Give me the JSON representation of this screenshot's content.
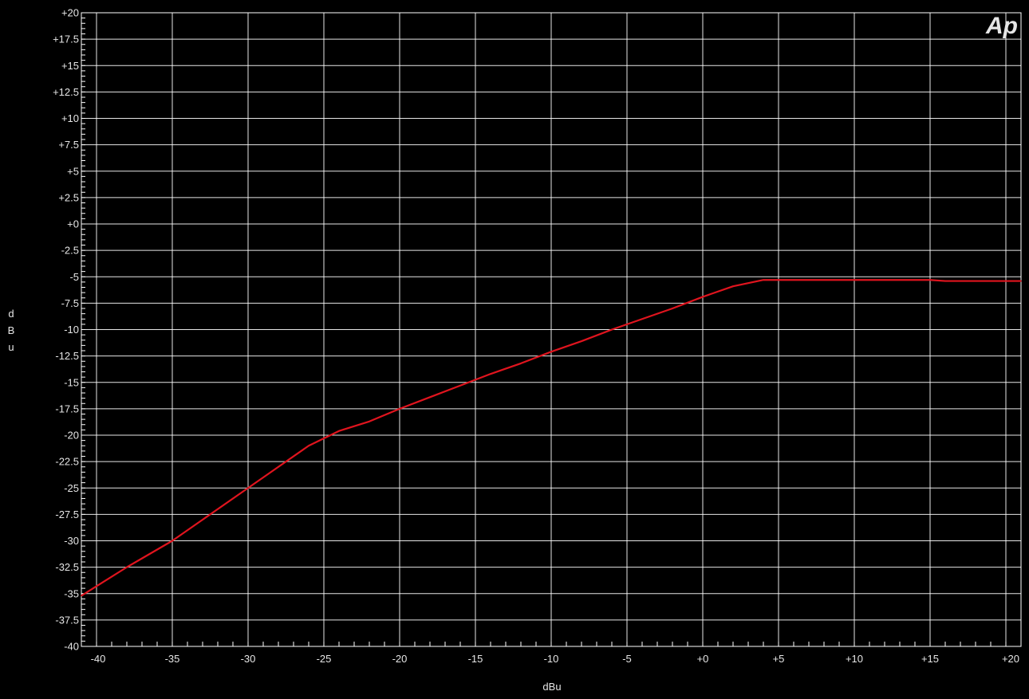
{
  "chart_data": {
    "type": "line",
    "title": "",
    "xlabel": "dBu",
    "ylabel": "dBu",
    "ylabel_chars": [
      "d",
      "B",
      "u"
    ],
    "xlim": [
      -41,
      21
    ],
    "ylim": [
      -40,
      20
    ],
    "grid": true,
    "x_ticks": [
      -40,
      -35,
      -30,
      -25,
      -20,
      -15,
      -10,
      -5,
      0,
      5,
      10,
      15,
      20
    ],
    "x_tick_labels": [
      "-40",
      "-35",
      "-30",
      "-25",
      "-20",
      "-15",
      "-10",
      "-5",
      "+0",
      "+5",
      "+10",
      "+15",
      "+20"
    ],
    "y_ticks": [
      20,
      17.5,
      15,
      12.5,
      10,
      7.5,
      5,
      2.5,
      0,
      -2.5,
      -5,
      -7.5,
      -10,
      -12.5,
      -15,
      -17.5,
      -20,
      -22.5,
      -25,
      -27.5,
      -30,
      -32.5,
      -35,
      -37.5,
      -40
    ],
    "y_tick_labels": [
      "+20",
      "+17.5",
      "+15",
      "+12.5",
      "+10",
      "+7.5",
      "+5",
      "+2.5",
      "+0",
      "-2.5",
      "-5",
      "-7.5",
      "-10",
      "-12.5",
      "-15",
      "-17.5",
      "-20",
      "-22.5",
      "-25",
      "-27.5",
      "-30",
      "-32.5",
      "-35",
      "-37.5",
      "-40"
    ],
    "series": [
      {
        "color": "#e0141e",
        "x": [
          -41,
          -38,
          -35,
          -32,
          -30,
          -28,
          -26,
          -24,
          -22,
          -20,
          -18,
          -16,
          -14,
          -12,
          -10,
          -8,
          -6,
          -4,
          -2,
          0,
          2,
          4,
          5,
          10,
          15,
          16,
          21
        ],
        "y": [
          -35.2,
          -32.5,
          -30,
          -27,
          -25,
          -23,
          -21,
          -19.6,
          -18.7,
          -17.5,
          -16.4,
          -15.3,
          -14.2,
          -13.2,
          -12.1,
          -11.1,
          -10,
          -9,
          -8,
          -6.9,
          -5.9,
          -5.3,
          -5.3,
          -5.3,
          -5.3,
          -5.4,
          -5.4
        ]
      }
    ],
    "logo": "Ap",
    "colors": {
      "background": "#000000",
      "grid": "#ffffff",
      "text": "#e6e6e6",
      "trace": "#e0141e",
      "logo": "#1a2cff"
    }
  }
}
